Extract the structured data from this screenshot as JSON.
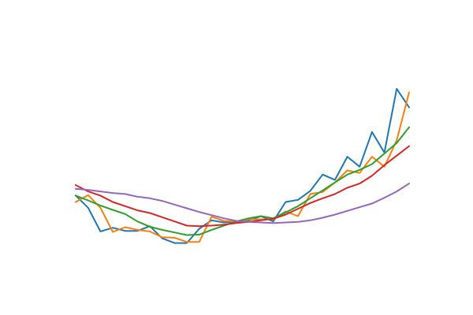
{
  "chart_data": {
    "type": "line",
    "title": "",
    "xlabel": "",
    "ylabel": "",
    "axes_visible": false,
    "grid": false,
    "legend": "none",
    "x": [
      0,
      1,
      2,
      3,
      4,
      5,
      6,
      7,
      8,
      9,
      10,
      11,
      12,
      13,
      14,
      15,
      16,
      17,
      18,
      19,
      20,
      21,
      22,
      23,
      24,
      25,
      26,
      27
    ],
    "xlim": [
      -1.35,
      28.35
    ],
    "ylim": [
      -0.01,
      0.9
    ],
    "series": [
      {
        "color": "#1f77b4",
        "values": [
          0.3,
          0.254,
          0.164,
          0.178,
          0.166,
          0.166,
          0.184,
          0.138,
          0.12,
          0.12,
          0.174,
          0.206,
          0.198,
          0.202,
          0.206,
          0.222,
          0.202,
          0.276,
          0.284,
          0.318,
          0.38,
          0.36,
          0.448,
          0.41,
          0.542,
          0.464,
          0.706,
          0.636
        ]
      },
      {
        "color": "#ff7f0e",
        "values": [
          0.276,
          0.302,
          0.254,
          0.162,
          0.18,
          0.17,
          0.164,
          0.142,
          0.14,
          0.124,
          0.124,
          0.22,
          0.204,
          0.202,
          0.21,
          0.21,
          0.21,
          0.24,
          0.222,
          0.306,
          0.314,
          0.35,
          0.396,
          0.386,
          0.448,
          0.41,
          0.51,
          0.692
        ]
      },
      {
        "color": "#2ca02c",
        "values": [
          0.3,
          0.282,
          0.262,
          0.246,
          0.23,
          0.202,
          0.182,
          0.17,
          0.16,
          0.15,
          0.152,
          0.17,
          0.186,
          0.202,
          0.214,
          0.222,
          0.214,
          0.236,
          0.26,
          0.29,
          0.32,
          0.35,
          0.38,
          0.398,
          0.42,
          0.46,
          0.5,
          0.56
        ]
      },
      {
        "color": "#d62728",
        "values": [
          0.34,
          0.316,
          0.3,
          0.276,
          0.26,
          0.244,
          0.234,
          0.218,
          0.202,
          0.186,
          0.184,
          0.186,
          0.19,
          0.196,
          0.2,
          0.206,
          0.212,
          0.228,
          0.25,
          0.272,
          0.29,
          0.306,
          0.33,
          0.346,
          0.376,
          0.416,
          0.452,
          0.488
        ]
      },
      {
        "color": "#9467bd",
        "values": [
          0.326,
          0.322,
          0.316,
          0.31,
          0.306,
          0.296,
          0.29,
          0.28,
          0.266,
          0.252,
          0.238,
          0.226,
          0.214,
          0.204,
          0.2,
          0.198,
          0.196,
          0.198,
          0.2,
          0.206,
          0.216,
          0.228,
          0.242,
          0.256,
          0.27,
          0.292,
          0.316,
          0.346
        ]
      }
    ]
  }
}
